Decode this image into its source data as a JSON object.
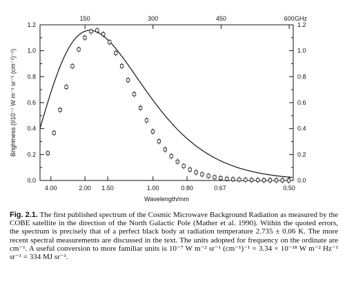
{
  "chart_data": {
    "type": "scatter",
    "title": "",
    "xlabel": "Wavelength/mm",
    "ylabel": "Brightness (I/10⁻⁷ W m⁻² sr⁻¹ (cm⁻¹)⁻¹)",
    "top_axis_unit": "GHz",
    "x_unit": "cm^-1 (wavenumber)",
    "xlim": [
      1.7,
      20.3
    ],
    "ylim": [
      0.0,
      1.2
    ],
    "top_ticks": [
      {
        "value": 5.0,
        "label": "150"
      },
      {
        "value": 10.0,
        "label": "300"
      },
      {
        "value": 15.0,
        "label": "450"
      },
      {
        "value": 20.0,
        "label": "600"
      }
    ],
    "bottom_ticks": [
      {
        "value": 2.5,
        "label": "4.00"
      },
      {
        "value": 5.0,
        "label": "2.00"
      },
      {
        "value": 6.67,
        "label": "1.50"
      },
      {
        "value": 10.0,
        "label": "1.00"
      },
      {
        "value": 12.5,
        "label": "0.80"
      },
      {
        "value": 14.93,
        "label": "0.67"
      },
      {
        "value": 20.0,
        "label": "0.50"
      }
    ],
    "y_ticks": [
      {
        "value": 0.0,
        "label": "0.0"
      },
      {
        "value": 0.2,
        "label": "0.2"
      },
      {
        "value": 0.4,
        "label": "0.4"
      },
      {
        "value": 0.6,
        "label": "0.6"
      },
      {
        "value": 0.8,
        "label": "0.8"
      },
      {
        "value": 1.0,
        "label": "1.0"
      },
      {
        "value": 1.2,
        "label": "1.2"
      }
    ],
    "series": [
      {
        "marker": "open-square",
        "x": [
          2.27,
          2.72,
          3.18,
          3.63,
          4.08,
          4.54,
          4.99,
          5.45,
          5.9,
          6.35,
          6.81,
          7.26,
          7.71,
          8.17,
          8.62,
          9.08,
          9.53,
          9.98,
          10.44,
          10.89,
          11.34,
          11.8,
          12.25,
          12.71,
          13.16,
          13.61,
          14.07,
          14.52,
          14.97,
          15.43,
          15.88,
          16.34,
          16.79,
          17.24,
          17.7,
          18.15,
          18.6,
          19.06,
          19.51,
          19.97
        ],
        "y": [
          0.21,
          0.367,
          0.544,
          0.721,
          0.881,
          1.01,
          1.101,
          1.149,
          1.157,
          1.127,
          1.066,
          0.982,
          0.882,
          0.774,
          0.665,
          0.56,
          0.463,
          0.377,
          0.302,
          0.239,
          0.187,
          0.145,
          0.111,
          0.084,
          0.063,
          0.047,
          0.035,
          0.025,
          0.018,
          0.013,
          0.009,
          0.007,
          0.005,
          0.004,
          0.003,
          0.002,
          0.001,
          0.001,
          0.001,
          0.0
        ]
      }
    ],
    "fit_curve": "blackbody 2.735 K"
  },
  "caption": {
    "label": "Fig. 2.1.",
    "text": "The first published spectrum of the Cosmic Microwave Background Radiation as measured by the COBE satellite in the direction of the North Galactic Pole (Mather et al. 1990). Within the quoted errors, the spectrum is precisely that of a perfect black body at radiation temperature 2.735 ± 0.06 K. The more recent spectral measurements are discussed in the text. The units adopted for frequency on the ordinate are cm⁻¹. A useful conversion to more familiar units is 10⁻⁷ W m⁻² sr⁻¹ (cm⁻¹)⁻¹ = 3.34 × 10⁻¹⁸ W m⁻² Hz⁻¹ sr⁻¹ = 334 MJ sr⁻¹."
  }
}
